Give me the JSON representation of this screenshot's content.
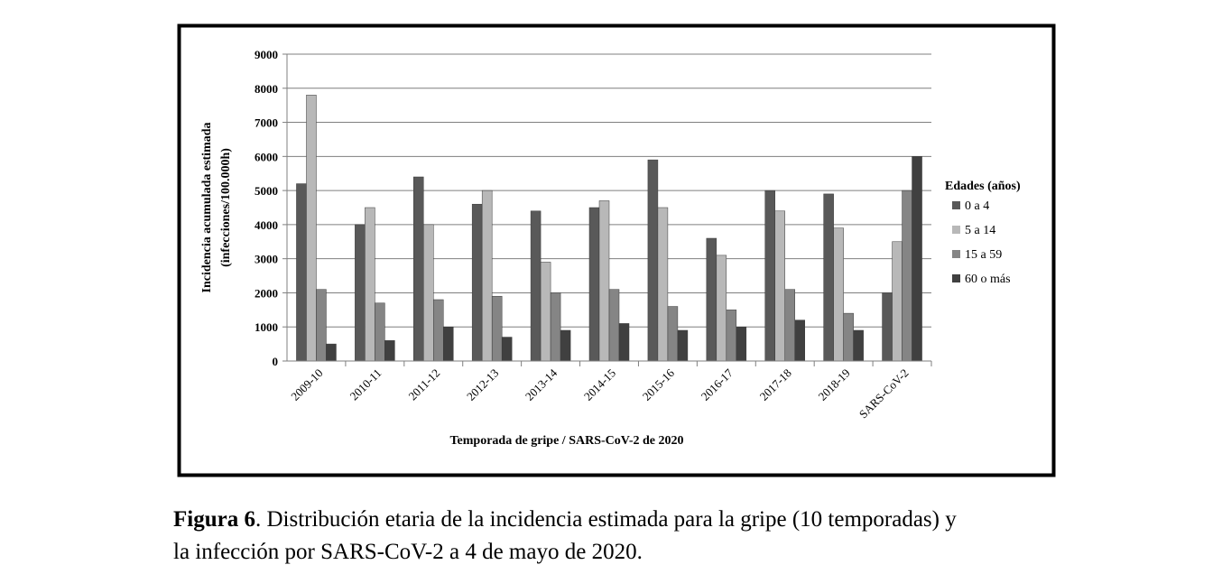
{
  "chart_data": {
    "type": "bar",
    "categories": [
      "2009-10",
      "2010-11",
      "2011-12",
      "2012-13",
      "2013-14",
      "2014-15",
      "2015-16",
      "2016-17",
      "2017-18",
      "2018-19",
      "SARS-CoV-2"
    ],
    "series": [
      {
        "name": "0 a 4",
        "color": "#595959",
        "values": [
          5200,
          4000,
          5400,
          4600,
          4400,
          4500,
          5900,
          3600,
          5000,
          4900,
          2000
        ]
      },
      {
        "name": "5 a 14",
        "color": "#b8b8b8",
        "values": [
          7800,
          4500,
          4000,
          5000,
          2900,
          4700,
          4500,
          3100,
          4400,
          3900,
          3500
        ]
      },
      {
        "name": "15 a 59",
        "color": "#858585",
        "values": [
          2100,
          1700,
          1800,
          1900,
          2000,
          2100,
          1600,
          1500,
          2100,
          1400,
          5000
        ]
      },
      {
        "name": "60 o más",
        "color": "#404040",
        "values": [
          500,
          600,
          1000,
          700,
          900,
          1100,
          900,
          1000,
          1200,
          900,
          6000
        ]
      }
    ],
    "yticks": [
      "0",
      "1000",
      "2000",
      "3000",
      "4000",
      "5000",
      "6000",
      "7000",
      "8000",
      "9000"
    ],
    "ylim": [
      0,
      9000
    ],
    "ylabel_line1": "Incidencia acumulada estimada",
    "ylabel_line2": "(infecciones/100.000h)",
    "xlabel": "Temporada de gripe / SARS-CoV-2 de 2020",
    "legend_title": "Edades (años)",
    "legend_position": "right",
    "grid": "horizontal"
  },
  "caption": {
    "label": "Figura 6",
    "line1": ". Distribución etaria de la incidencia estimada para la gripe (10 temporadas) y",
    "line2": "la infección por SARS-CoV-2 a 4 de mayo de 2020."
  }
}
